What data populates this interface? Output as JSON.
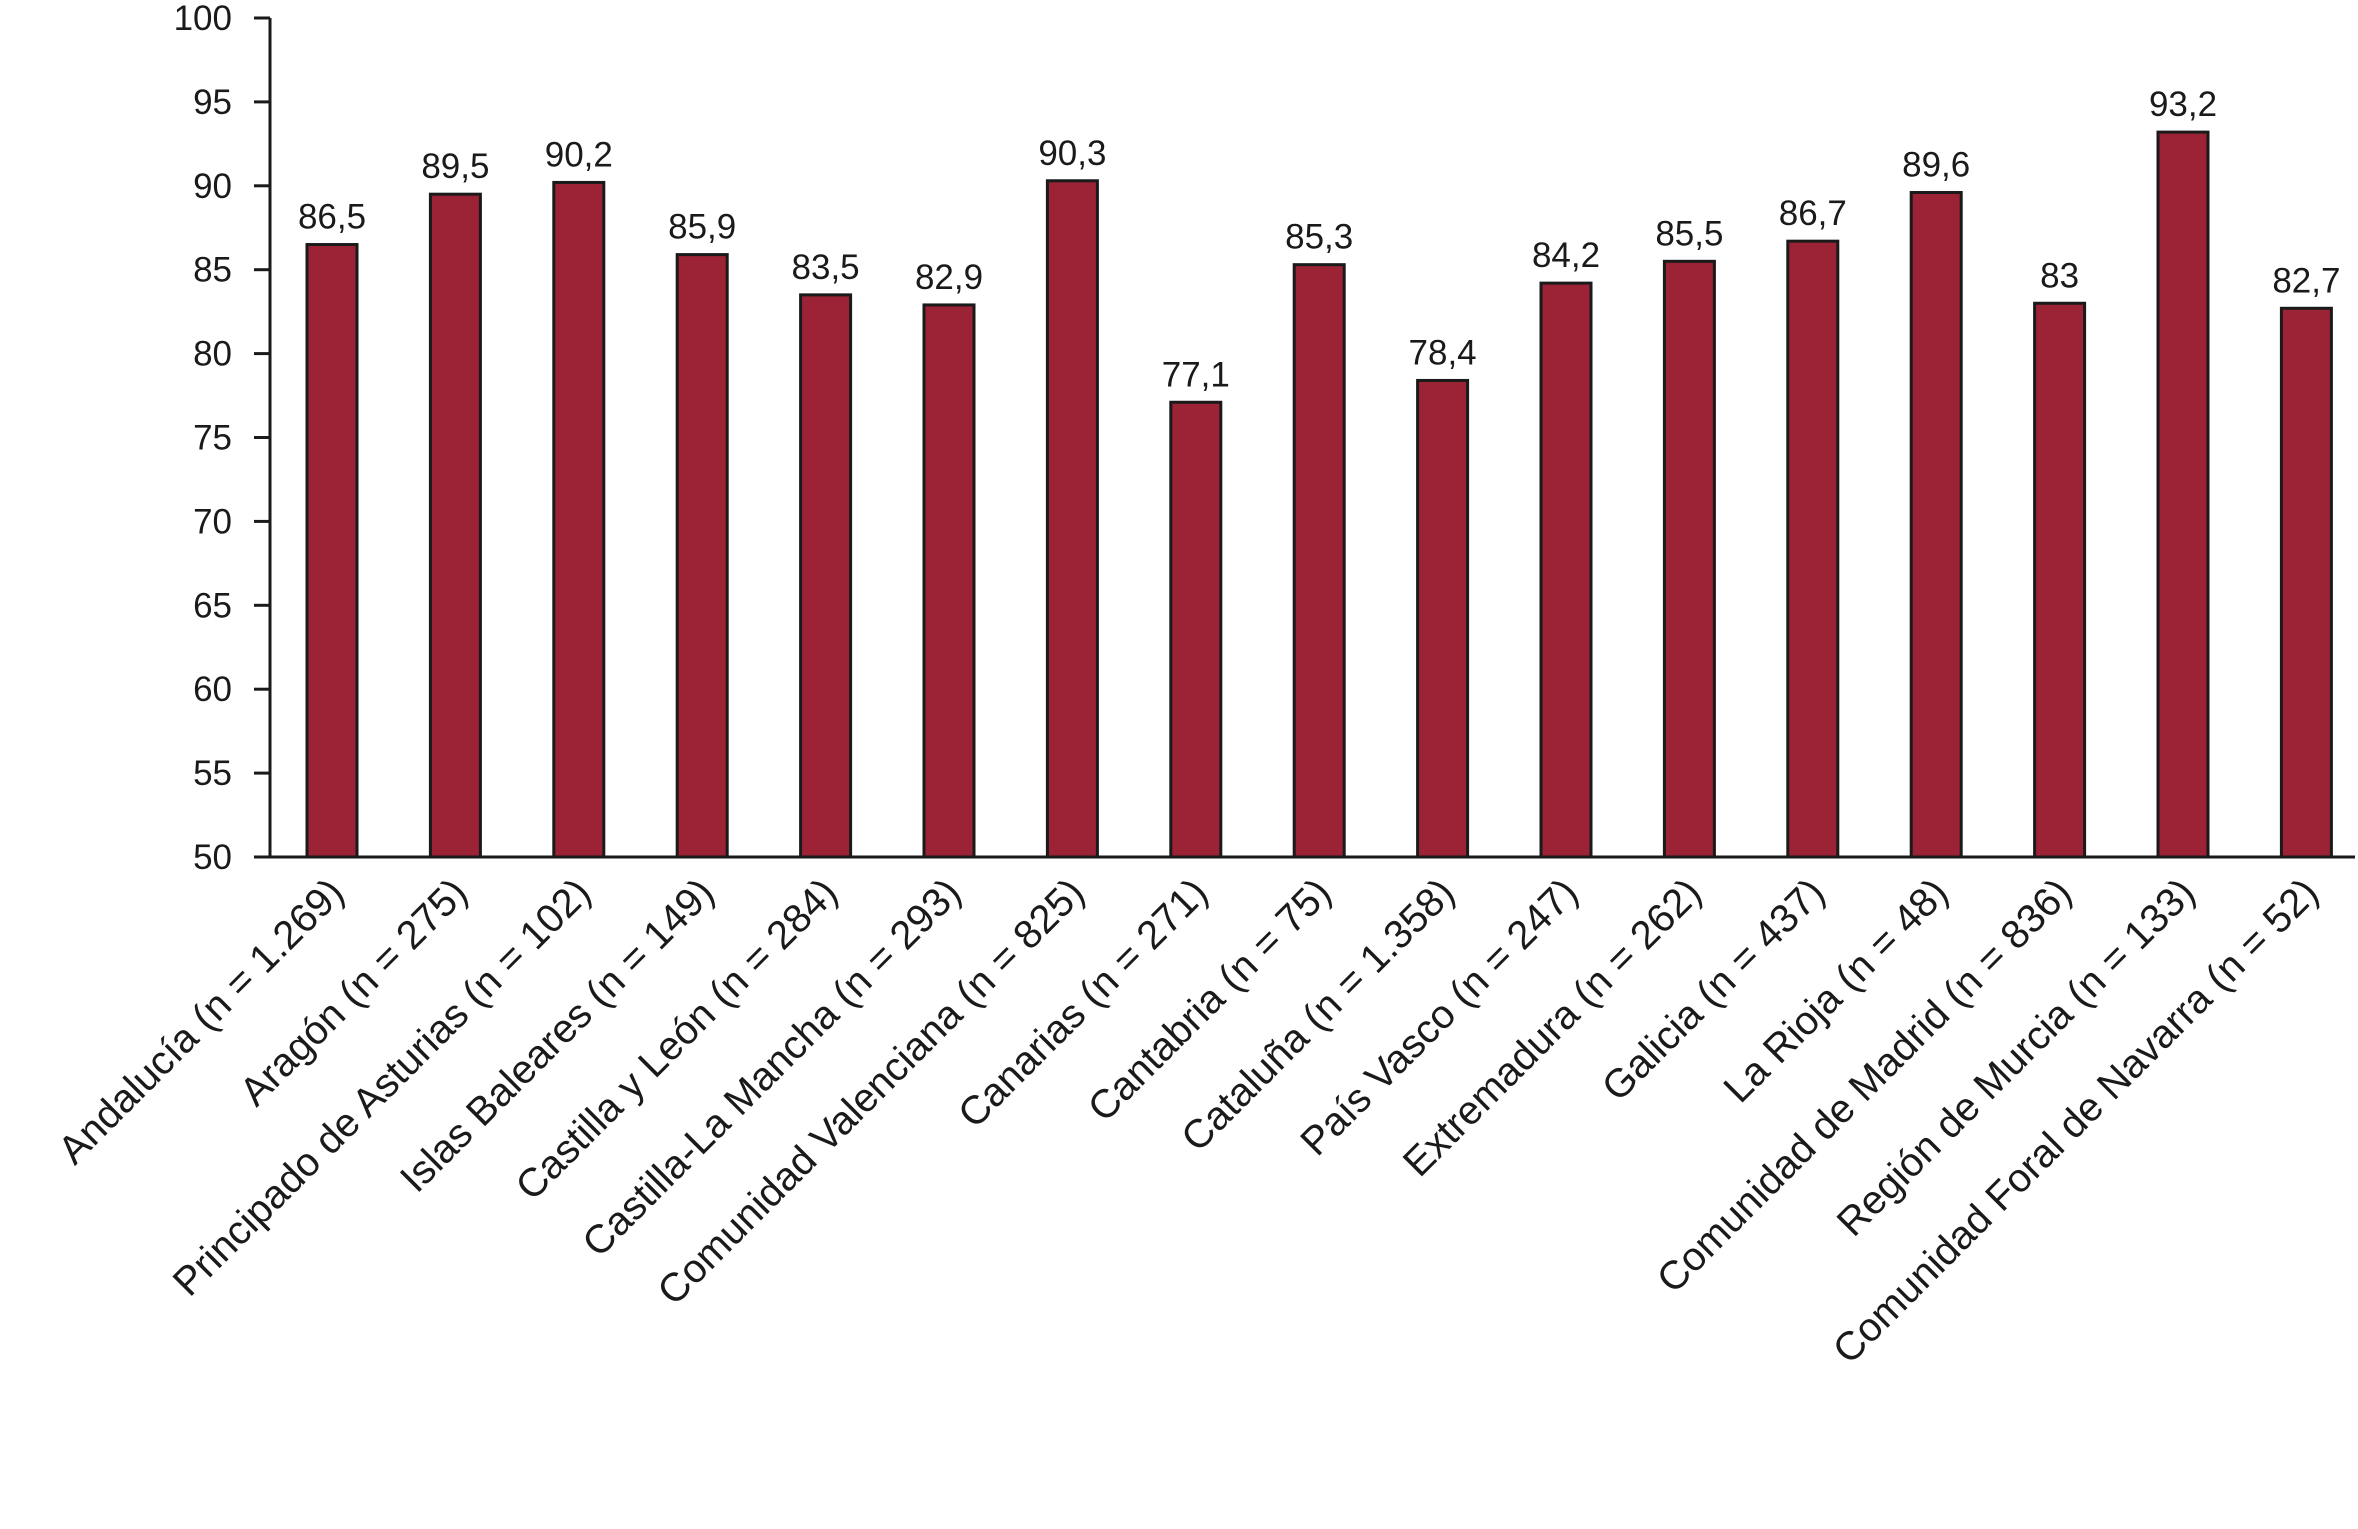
{
  "chart_data": {
    "type": "bar",
    "categories": [
      "Andalucía (n = 1.269)",
      "Aragón (n = 275)",
      "Principado de Asturias (n = 102)",
      "Islas Baleares (n = 149)",
      "Castilla y León (n = 284)",
      "Castilla-La Mancha (n = 293)",
      "Comunidad Valenciana (n = 825)",
      "Canarias (n = 271)",
      "Cantabria (n = 75)",
      "Cataluña (n = 1.358)",
      "País Vasco (n = 247)",
      "Extremadura (n = 262)",
      "Galicia (n = 437)",
      "La Rioja (n = 48)",
      "Comunidad de Madrid (n = 836)",
      "Región de Murcia (n = 133)",
      "Comunidad Foral de Navarra (n = 52)"
    ],
    "values": [
      86.5,
      89.5,
      90.2,
      85.9,
      83.5,
      82.9,
      90.3,
      77.1,
      85.3,
      78.4,
      84.2,
      85.5,
      86.7,
      89.6,
      83,
      93.2,
      82.7
    ],
    "value_labels": [
      "86,5",
      "89,5",
      "90,2",
      "85,9",
      "83,5",
      "82,9",
      "90,3",
      "77,1",
      "85,3",
      "78,4",
      "84,2",
      "85,5",
      "86,7",
      "89,6",
      "83",
      "93,2",
      "82,7"
    ],
    "yticks": [
      50,
      55,
      60,
      65,
      70,
      75,
      80,
      85,
      90,
      95,
      100
    ],
    "ylim": [
      50,
      100
    ],
    "title": "",
    "xlabel": "",
    "ylabel": "",
    "grid": false,
    "bar_color": "#9b2335"
  }
}
